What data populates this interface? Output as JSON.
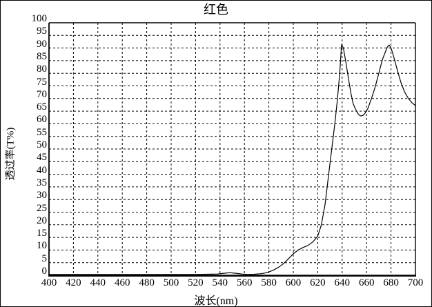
{
  "figure": {
    "background": "#ffffff",
    "line_color": "#000000"
  },
  "chart_data": {
    "type": "line",
    "title": "红色",
    "xlabel": "波长(nm)",
    "ylabel": "透过率(T%)",
    "xlim": [
      400,
      700
    ],
    "ylim": [
      0,
      100
    ],
    "x_ticks": [
      400,
      420,
      440,
      460,
      480,
      500,
      520,
      540,
      560,
      580,
      600,
      620,
      640,
      660,
      680,
      700
    ],
    "y_ticks": [
      0,
      5,
      10,
      15,
      20,
      25,
      30,
      35,
      40,
      45,
      50,
      55,
      60,
      65,
      70,
      75,
      80,
      85,
      90,
      95,
      100
    ],
    "grid": "dashed",
    "legend": "none",
    "series": [
      {
        "points": [
          [
            400,
            0.3
          ],
          [
            410,
            0.3
          ],
          [
            420,
            0.3
          ],
          [
            430,
            0.3
          ],
          [
            440,
            0.3
          ],
          [
            450,
            0.3
          ],
          [
            460,
            0.3
          ],
          [
            470,
            0.3
          ],
          [
            480,
            0.3
          ],
          [
            490,
            0.3
          ],
          [
            500,
            0.3
          ],
          [
            510,
            0.3
          ],
          [
            520,
            0.3
          ],
          [
            530,
            0.4
          ],
          [
            538,
            0.5
          ],
          [
            543,
            0.8
          ],
          [
            548,
            1.0
          ],
          [
            553,
            0.8
          ],
          [
            558,
            0.5
          ],
          [
            563,
            0.3
          ],
          [
            568,
            0.4
          ],
          [
            573,
            0.6
          ],
          [
            577,
            0.9
          ],
          [
            580,
            1.3
          ],
          [
            584,
            2.1
          ],
          [
            588,
            3.2
          ],
          [
            592,
            4.6
          ],
          [
            596,
            6.5
          ],
          [
            600,
            8.5
          ],
          [
            604,
            10.0
          ],
          [
            608,
            11.0
          ],
          [
            612,
            11.8
          ],
          [
            616,
            13.2
          ],
          [
            620,
            15.5
          ],
          [
            623,
            20
          ],
          [
            626,
            28
          ],
          [
            629,
            40
          ],
          [
            632,
            52
          ],
          [
            634,
            60
          ],
          [
            636,
            69
          ],
          [
            638,
            80
          ],
          [
            639.5,
            91.3
          ],
          [
            641,
            90
          ],
          [
            643,
            84.5
          ],
          [
            645,
            78.5
          ],
          [
            647,
            72.5
          ],
          [
            649,
            68
          ],
          [
            651,
            65.7
          ],
          [
            653,
            64
          ],
          [
            655,
            63.1
          ],
          [
            657,
            63.3
          ],
          [
            659,
            64.3
          ],
          [
            661,
            66
          ],
          [
            664,
            70
          ],
          [
            667,
            74.5
          ],
          [
            670,
            80
          ],
          [
            673,
            85.5
          ],
          [
            675,
            88
          ],
          [
            677,
            90.4
          ],
          [
            678.5,
            91.2
          ],
          [
            680,
            90
          ],
          [
            682,
            87
          ],
          [
            685,
            81.5
          ],
          [
            688,
            76.5
          ],
          [
            691,
            72.7
          ],
          [
            694,
            70.2
          ],
          [
            697,
            68.4
          ],
          [
            700,
            67.2
          ]
        ]
      }
    ]
  }
}
